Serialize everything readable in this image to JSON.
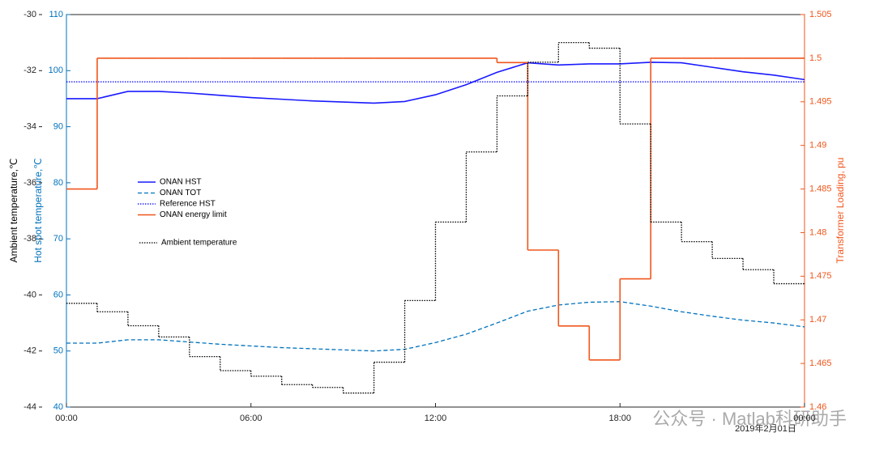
{
  "chart_data": {
    "type": "line",
    "ylabel": "Hot spot temperature,℃",
    "y2label": "Transformer Loading, pu",
    "y3label": "Ambient temperature,℃",
    "date_label": "2019年2月01日",
    "watermark": "公众号 · Matlab科研助手",
    "x": [
      0,
      1,
      2,
      3,
      4,
      5,
      6,
      7,
      8,
      9,
      10,
      11,
      12,
      13,
      14,
      15,
      16,
      17,
      18,
      19,
      20,
      21,
      22,
      23,
      24
    ],
    "xlim": [
      0,
      24
    ],
    "xticks": [
      {
        "value": 0,
        "label": "00:00"
      },
      {
        "value": 6,
        "label": "06:00"
      },
      {
        "value": 12,
        "label": "12:00"
      },
      {
        "value": 18,
        "label": "18:00"
      },
      {
        "value": 24,
        "label": "00:00"
      }
    ],
    "ylim": [
      40,
      110
    ],
    "yticks": [
      40,
      50,
      60,
      70,
      80,
      90,
      100,
      110
    ],
    "y2lim": [
      1.46,
      1.505
    ],
    "y2ticks": [
      1.46,
      1.465,
      1.47,
      1.475,
      1.48,
      1.485,
      1.49,
      1.495,
      1.5,
      1.505
    ],
    "y3lim": [
      -44,
      -30
    ],
    "y3ticks": [
      -44,
      -42,
      -40,
      -38,
      -36,
      -34,
      -32,
      -30
    ],
    "series": [
      {
        "name": "ONAN HST",
        "color": "#1a1aff",
        "style": "solid",
        "axis": "y",
        "step": false,
        "values": [
          95,
          95,
          96.3,
          96.3,
          96.0,
          95.6,
          95.2,
          94.9,
          94.6,
          94.4,
          94.2,
          94.5,
          95.7,
          97.5,
          99.7,
          101.4,
          101.0,
          101.2,
          101.2,
          101.5,
          101.4,
          100.6,
          99.8,
          99.2,
          98.4
        ]
      },
      {
        "name": "ONAN TOT",
        "color": "#0072bd",
        "style": "dashed",
        "axis": "y",
        "step": false,
        "values": [
          51.4,
          51.4,
          52.0,
          52.0,
          51.6,
          51.2,
          50.9,
          50.6,
          50.4,
          50.2,
          50.0,
          50.3,
          51.5,
          53.0,
          55.0,
          57.1,
          58.2,
          58.7,
          58.8,
          58.0,
          57.0,
          56.2,
          55.5,
          55.0,
          54.3
        ]
      },
      {
        "name": "Reference HST",
        "color": "#0000ff",
        "style": "dotted",
        "axis": "y",
        "step": false,
        "values": [
          98,
          98,
          98,
          98,
          98,
          98,
          98,
          98,
          98,
          98,
          98,
          98,
          98,
          98,
          98,
          98,
          98,
          98,
          98,
          98,
          98,
          98,
          98,
          98,
          98
        ]
      },
      {
        "name": "ONAN energy limit",
        "color": "#f0561c",
        "style": "solid",
        "axis": "y2",
        "step": true,
        "values": [
          1.485,
          1.5,
          1.5,
          1.5,
          1.5,
          1.5,
          1.5,
          1.5,
          1.5,
          1.5,
          1.5,
          1.5,
          1.5,
          1.5,
          1.4995,
          1.478,
          1.4693,
          1.4654,
          1.4747,
          1.5,
          1.5,
          1.5,
          1.5,
          1.5,
          1.5
        ]
      },
      {
        "name": "Ambient temperature",
        "color": "#000000",
        "style": "dotted",
        "axis": "y3",
        "step": true,
        "values": [
          -40.3,
          -40.6,
          -41.1,
          -41.5,
          -42.2,
          -42.7,
          -42.9,
          -43.2,
          -43.3,
          -43.5,
          -42.4,
          -40.2,
          -37.4,
          -34.9,
          -32.9,
          -31.7,
          -31.0,
          -31.2,
          -33.9,
          -37.4,
          -38.1,
          -38.7,
          -39.1,
          -39.6,
          -39.6
        ]
      }
    ]
  }
}
